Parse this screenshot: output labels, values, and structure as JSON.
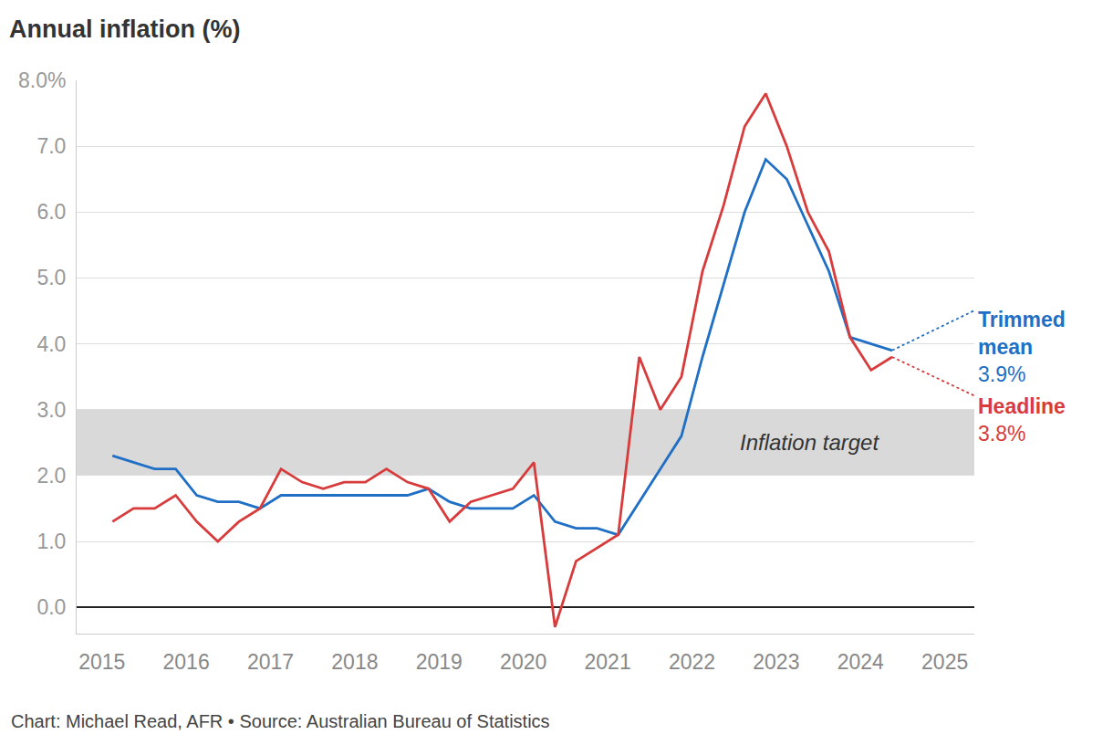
{
  "chart_data": {
    "type": "line",
    "title": "Annual inflation (%)",
    "source": "Chart: Michael Read, AFR • Source: Australian Bureau of Statistics",
    "x": [
      2015.125,
      2015.375,
      2015.625,
      2015.875,
      2016.125,
      2016.375,
      2016.625,
      2016.875,
      2017.125,
      2017.375,
      2017.625,
      2017.875,
      2018.125,
      2018.375,
      2018.625,
      2018.875,
      2019.125,
      2019.375,
      2019.625,
      2019.875,
      2020.125,
      2020.375,
      2020.625,
      2020.875,
      2021.125,
      2021.375,
      2021.625,
      2021.875,
      2022.125,
      2022.375,
      2022.625,
      2022.875,
      2023.125,
      2023.375,
      2023.625,
      2023.875,
      2024.125,
      2024.375
    ],
    "series": [
      {
        "name": "Trimmed mean",
        "color": "#1f6fc5",
        "values": [
          2.3,
          2.2,
          2.1,
          2.1,
          1.7,
          1.6,
          1.6,
          1.5,
          1.7,
          1.7,
          1.7,
          1.7,
          1.7,
          1.7,
          1.7,
          1.8,
          1.6,
          1.5,
          1.5,
          1.5,
          1.7,
          1.3,
          1.2,
          1.2,
          1.1,
          1.6,
          2.1,
          2.6,
          3.8,
          4.9,
          6.0,
          6.8,
          6.5,
          5.8,
          5.1,
          4.1,
          4.0,
          3.9
        ],
        "value_labels": [
          null,
          null,
          null,
          null,
          null,
          null,
          null,
          null,
          null,
          null,
          null,
          null,
          null,
          null,
          null,
          null,
          null,
          null,
          null,
          null,
          null,
          null,
          null,
          null,
          null,
          null,
          null,
          null,
          null,
          null,
          null,
          null,
          null,
          null,
          null,
          null,
          null,
          "3.9%"
        ]
      },
      {
        "name": "Headline",
        "color": "#d83b3b",
        "values": [
          1.3,
          1.5,
          1.5,
          1.7,
          1.3,
          1.0,
          1.3,
          1.5,
          2.1,
          1.9,
          1.8,
          1.9,
          1.9,
          2.1,
          1.9,
          1.8,
          1.3,
          1.6,
          1.7,
          1.8,
          2.2,
          -0.3,
          0.7,
          0.9,
          1.1,
          3.8,
          3.0,
          3.5,
          5.1,
          6.1,
          7.3,
          7.8,
          7.0,
          6.0,
          5.4,
          4.1,
          3.6,
          3.8
        ],
        "value_labels": [
          null,
          null,
          null,
          null,
          null,
          null,
          null,
          null,
          null,
          null,
          null,
          null,
          null,
          null,
          null,
          null,
          null,
          null,
          null,
          null,
          null,
          null,
          null,
          null,
          null,
          null,
          null,
          null,
          null,
          null,
          null,
          null,
          null,
          null,
          null,
          null,
          null,
          "3.8%"
        ]
      }
    ],
    "xlim": [
      2014.7,
      2025.35
    ],
    "xticks": [
      2015,
      2016,
      2017,
      2018,
      2019,
      2020,
      2021,
      2022,
      2023,
      2024,
      2025
    ],
    "ylim": [
      -0.4,
      8
    ],
    "yticks": [
      {
        "value": 0,
        "label": "0.0"
      },
      {
        "value": 1,
        "label": "1.0"
      },
      {
        "value": 2,
        "label": "2.0"
      },
      {
        "value": 3,
        "label": "3.0"
      },
      {
        "value": 4,
        "label": "4.0"
      },
      {
        "value": 5,
        "label": "5.0"
      },
      {
        "value": 6,
        "label": "6.0"
      },
      {
        "value": 7,
        "label": "7.0"
      },
      {
        "value": 8,
        "label": "8.0%"
      }
    ],
    "grid": true,
    "target_band": {
      "low": 2,
      "high": 3,
      "label": "Inflation target"
    }
  }
}
